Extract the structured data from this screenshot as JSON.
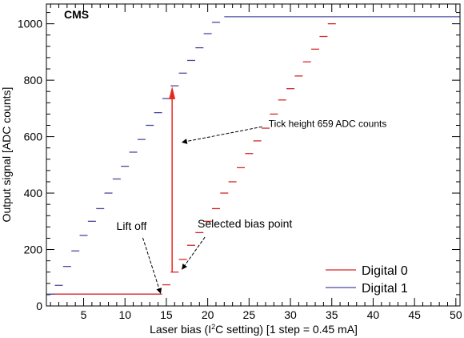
{
  "chart_data": {
    "type": "line",
    "watermark": "CMS",
    "xlabel_pre": "Laser bias (I",
    "xlabel_sup": "2",
    "xlabel_post": "C setting) [1 step = 0.45 mA]",
    "ylabel": "Output signal [ADC counts]",
    "xlim": [
      0.5,
      50.5
    ],
    "ylim": [
      0,
      1070
    ],
    "xticks": [
      5,
      10,
      15,
      20,
      25,
      30,
      35,
      40,
      45,
      50
    ],
    "yticks": [
      0,
      200,
      400,
      600,
      800,
      1000
    ],
    "grid": false,
    "legend_position": "bottom-right",
    "series": [
      {
        "name": "Digital 0",
        "color": "#d62728",
        "x": [
          1,
          2,
          3,
          4,
          5,
          6,
          7,
          8,
          9,
          10,
          11,
          12,
          13,
          14,
          15,
          16,
          17,
          18,
          19,
          20,
          21,
          22,
          23,
          24,
          25,
          26,
          27,
          28,
          29,
          30,
          31,
          32,
          33,
          34,
          35
        ],
        "y": [
          42,
          42,
          42,
          42,
          42,
          42,
          42,
          42,
          42,
          42,
          42,
          42,
          42,
          42,
          75,
          120,
          165,
          215,
          260,
          300,
          345,
          400,
          440,
          490,
          540,
          585,
          630,
          680,
          730,
          770,
          815,
          865,
          910,
          955,
          1000
        ]
      },
      {
        "name": "Digital 1",
        "color": "#4a4aa0",
        "x": [
          1,
          2,
          3,
          4,
          5,
          6,
          7,
          8,
          9,
          10,
          11,
          12,
          13,
          14,
          15,
          16,
          17,
          18,
          19,
          20,
          21,
          22,
          23,
          24,
          25,
          26,
          27,
          28,
          29,
          30,
          31,
          32,
          33,
          34,
          35,
          36,
          37,
          38,
          39,
          40,
          41,
          42,
          43,
          44,
          45,
          46,
          47,
          48,
          49,
          50
        ],
        "y": [
          42,
          73,
          140,
          195,
          250,
          300,
          345,
          400,
          450,
          495,
          545,
          590,
          640,
          685,
          735,
          780,
          825,
          870,
          915,
          965,
          1005,
          1025,
          1025,
          1025,
          1025,
          1025,
          1025,
          1025,
          1025,
          1025,
          1025,
          1025,
          1025,
          1025,
          1025,
          1025,
          1025,
          1025,
          1025,
          1025,
          1025,
          1025,
          1025,
          1025,
          1025,
          1025,
          1025,
          1025,
          1025,
          1025
        ]
      }
    ],
    "tick_height_arrow": {
      "x": 15.7,
      "y_from": 119,
      "y_to": 778
    },
    "annotations": [
      {
        "text": "Lift off",
        "x_text": 10.8,
        "y_text": 270,
        "x_point": 14.3,
        "y_point": 45
      },
      {
        "text": "Selected bias point",
        "x_text": 24.5,
        "y_text": 278,
        "x_point": 16.9,
        "y_point": 130
      },
      {
        "text": "Tick height 659 ADC counts",
        "x_text": 34.5,
        "y_text": 635,
        "x_point": 16.9,
        "y_point": 580
      }
    ]
  }
}
